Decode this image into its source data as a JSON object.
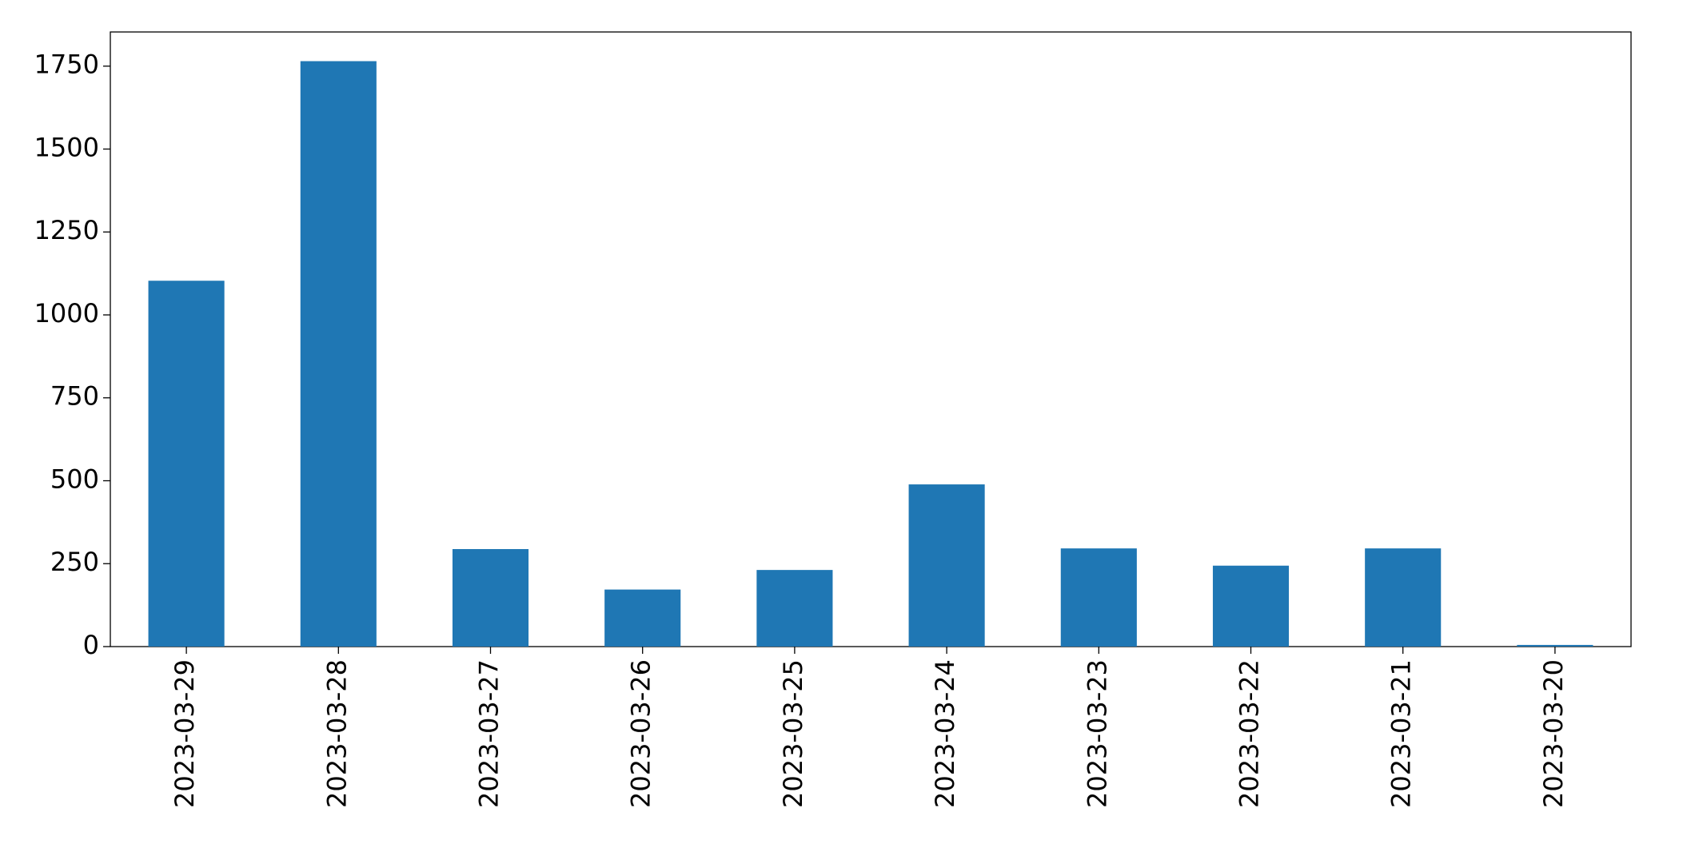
{
  "chart_data": {
    "type": "bar",
    "categories": [
      "2023-03-29",
      "2023-03-28",
      "2023-03-27",
      "2023-03-26",
      "2023-03-25",
      "2023-03-24",
      "2023-03-23",
      "2023-03-22",
      "2023-03-21",
      "2023-03-20"
    ],
    "values": [
      1103,
      1765,
      294,
      172,
      231,
      489,
      296,
      244,
      296,
      5
    ],
    "color": "#1f77b4",
    "ylim": [
      0,
      1853
    ],
    "yticks": [
      0,
      250,
      500,
      750,
      1000,
      1250,
      1500,
      1750
    ],
    "grid": false
  }
}
